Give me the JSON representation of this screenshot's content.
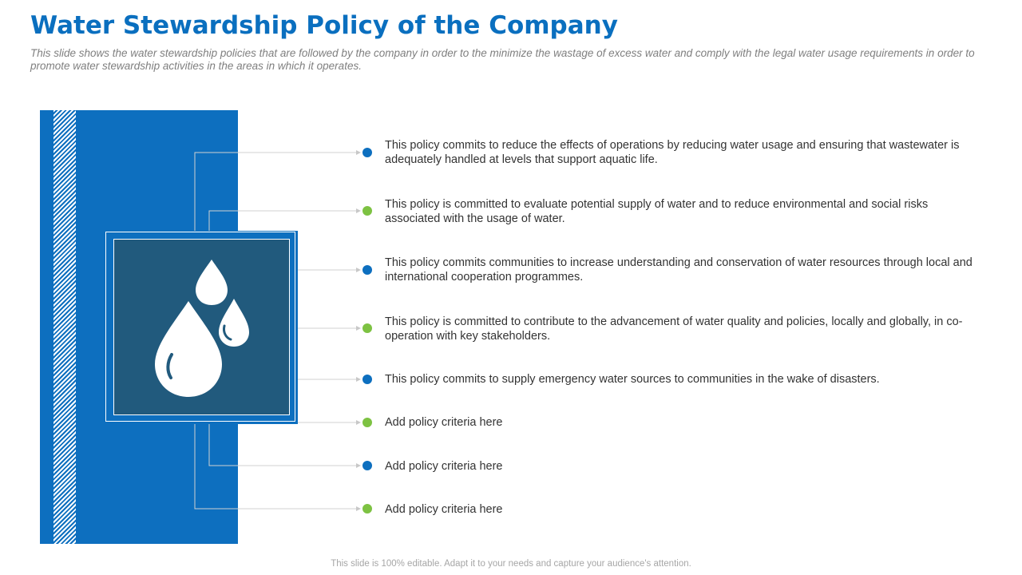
{
  "slide": {
    "title": "Water Stewardship Policy of the Company",
    "subtitle": "This slide shows the water stewardship policies that are followed by the company in order to the minimize the wastage of excess water and comply with the legal water usage requirements in order to promote water stewardship activities in the areas in which it operates.",
    "footer": "This slide is 100% editable. Adapt it to your needs and capture your audience's attention."
  },
  "colors": {
    "title": "#0a6fbf",
    "panel": "#0d6fbf",
    "icon_bg": "#215a7d",
    "dot_blue": "#0d6fbf",
    "dot_green": "#7dc242",
    "connector": "#d0d0d0"
  },
  "icon": "water-drops-icon",
  "policies": [
    {
      "text": "This policy commits to reduce the effects of operations by reducing water usage and ensuring that wastewater is adequately handled at levels that support aquatic life.",
      "dot": "blue"
    },
    {
      "text": "This policy is committed to evaluate potential supply of water and to reduce environmental and social risks associated with the usage of water.",
      "dot": "green"
    },
    {
      "text": "This policy commits communities to increase understanding and conservation of water resources through local and international cooperation programmes.",
      "dot": "blue"
    },
    {
      "text": "This policy is committed to contribute to the advancement of water quality and policies, locally and globally, in co-operation with key stakeholders.",
      "dot": "green"
    },
    {
      "text": "This policy commits to supply emergency water sources to communities in the wake of disasters.",
      "dot": "blue"
    },
    {
      "text": "Add policy criteria here",
      "dot": "green"
    },
    {
      "text": "Add policy criteria here",
      "dot": "blue"
    },
    {
      "text": "Add policy criteria here",
      "dot": "green"
    }
  ]
}
